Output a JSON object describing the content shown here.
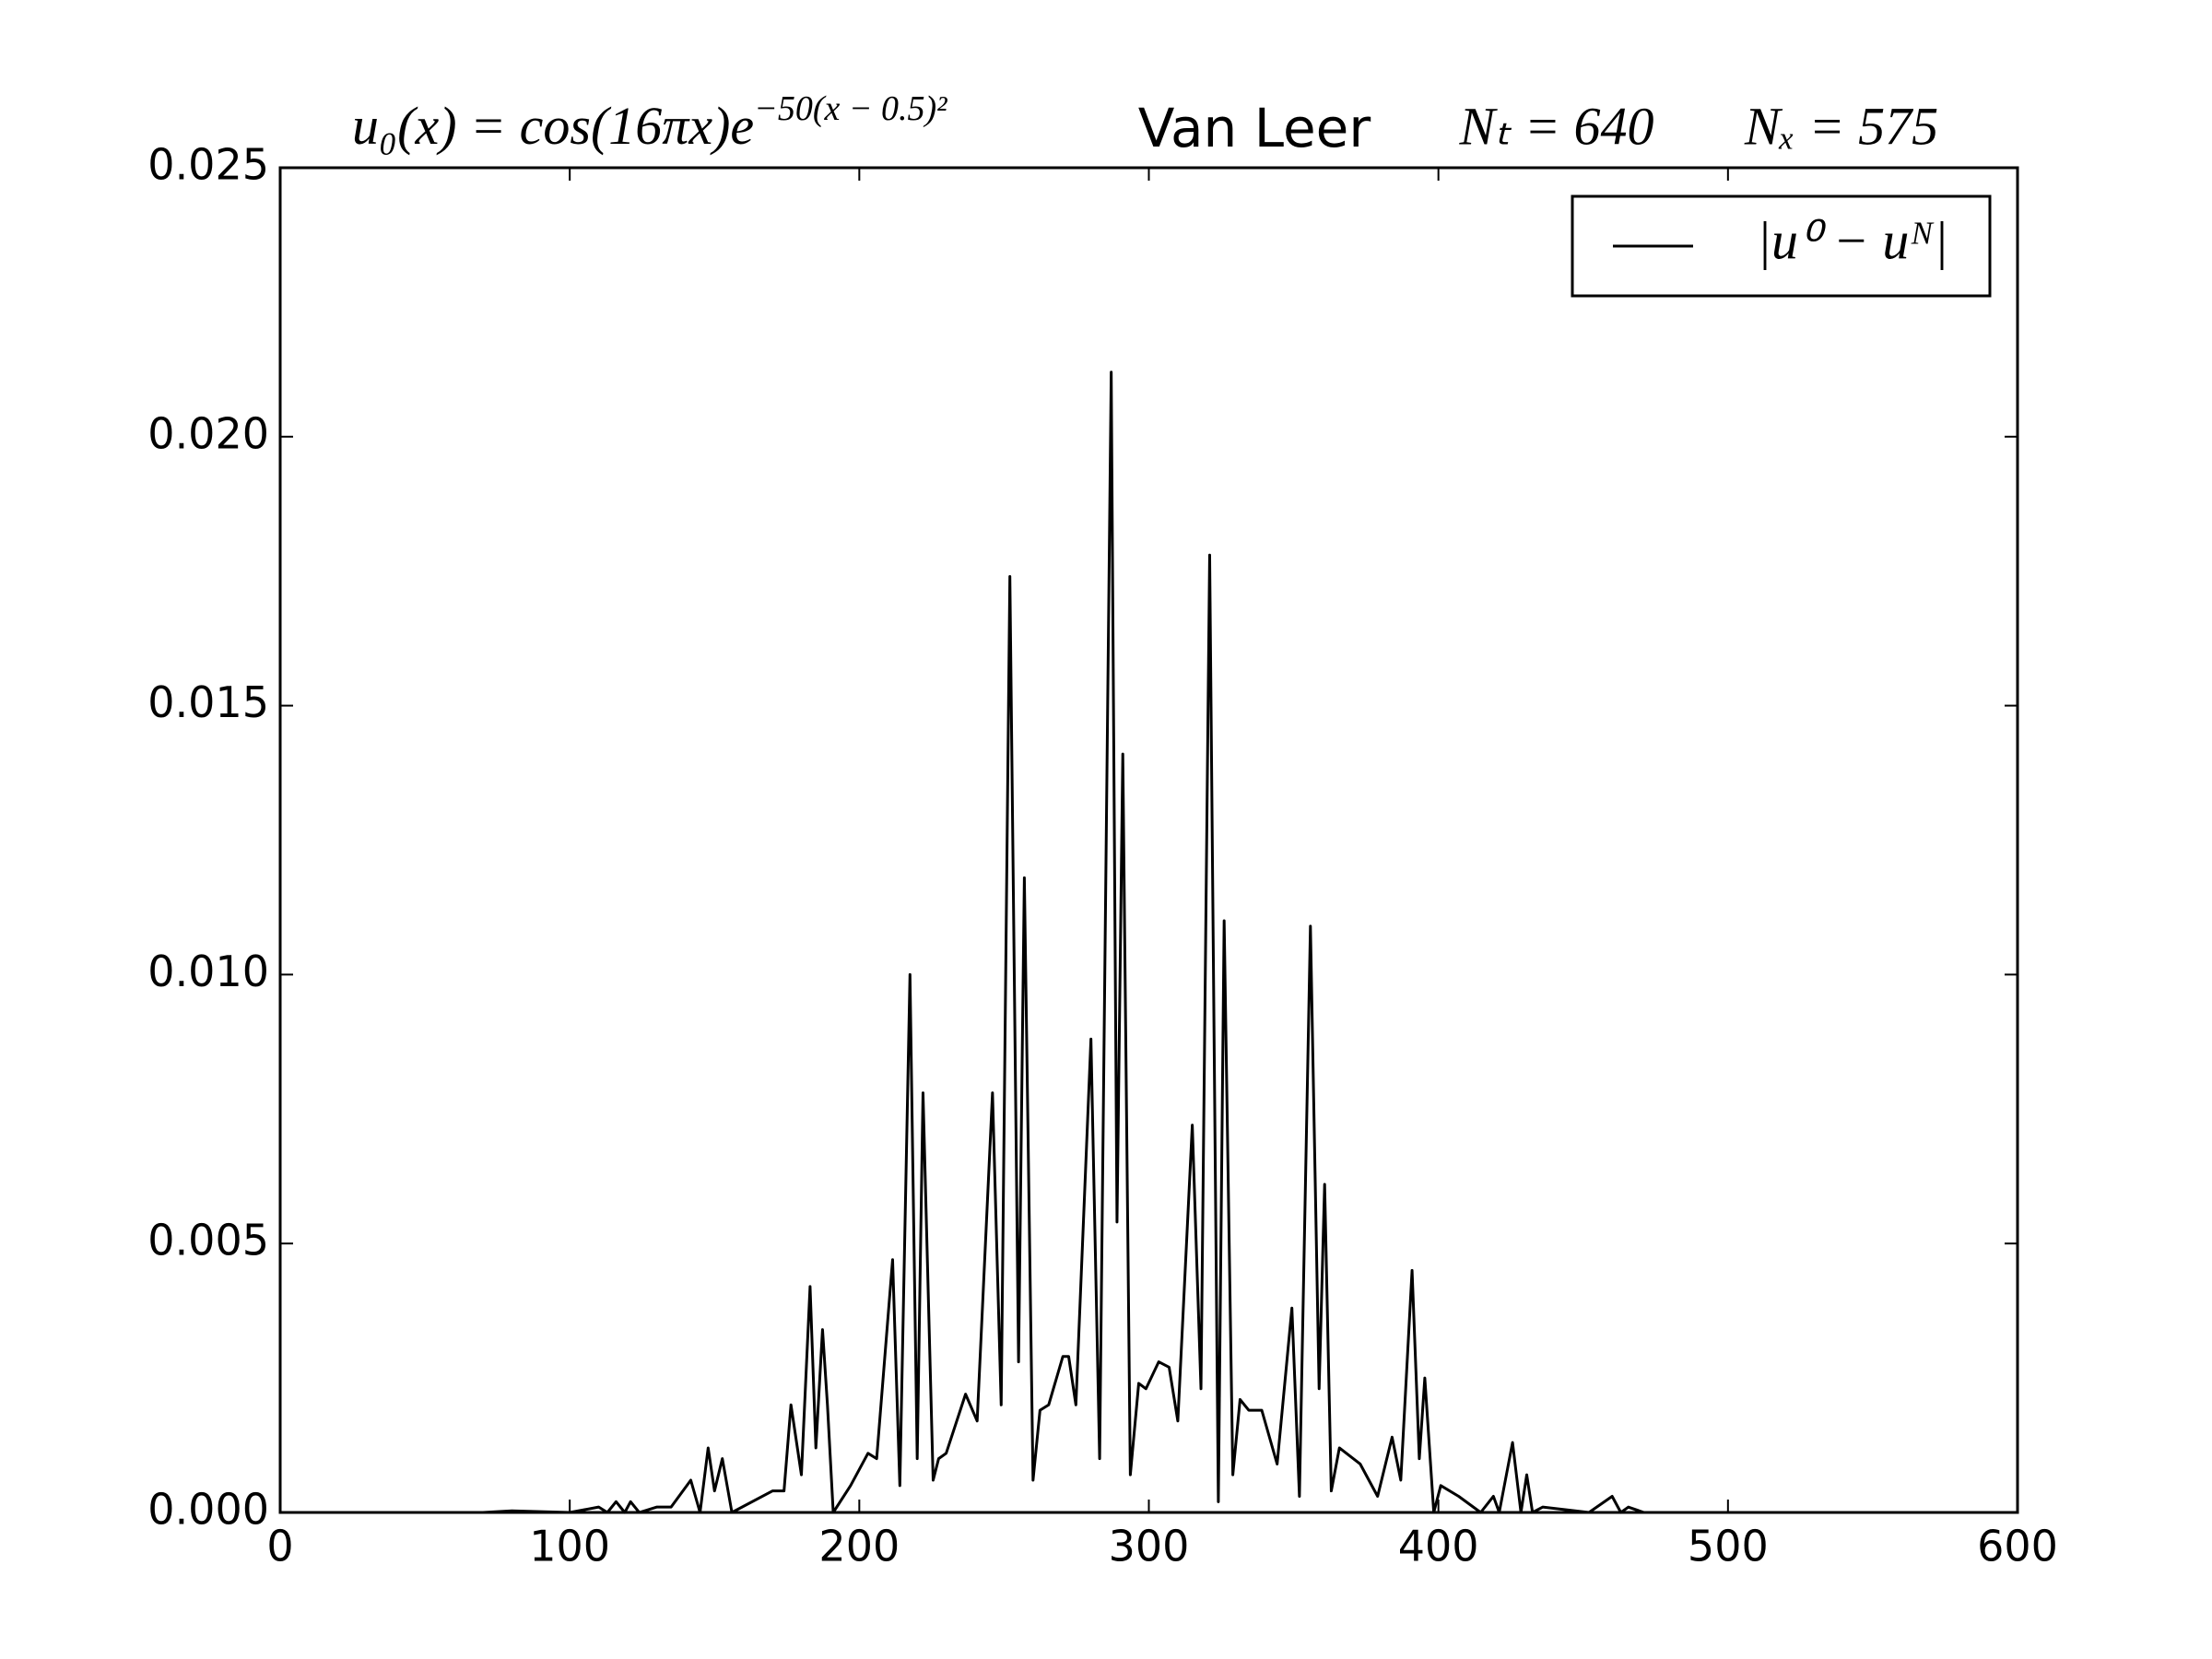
{
  "chart_data": {
    "type": "line",
    "title": {
      "formula": "u₀(x) = cos(16πx)e",
      "formula_exponent": "−50(x − 0.5)²",
      "method": "Van Leer",
      "time_steps": "Nₜ = 640",
      "space_steps": "Nₓ = 575"
    },
    "x": [
      0,
      70,
      80,
      100,
      110,
      113,
      116,
      119,
      121,
      124,
      130,
      135,
      141.8,
      145,
      147.8,
      150,
      152.7,
      156,
      170,
      174,
      176.4,
      180,
      183,
      185,
      187.3,
      189,
      191,
      197,
      203,
      206,
      211.5,
      214,
      217.5,
      220,
      222,
      225.5,
      227.4,
      230,
      236.7,
      240.7,
      246,
      249,
      252,
      255,
      257,
      260,
      262.4,
      265.4,
      270.3,
      272.3,
      274.8,
      280,
      283,
      287,
      289,
      291,
      293.6,
      296.5,
      299,
      303.4,
      307,
      310,
      315,
      318,
      321,
      324,
      326,
      329,
      331.5,
      334.5,
      339,
      344.3,
      349.4,
      352,
      355.8,
      358.8,
      360.7,
      363,
      365.8,
      373,
      379,
      384,
      387,
      390.9,
      393.4,
      395.3,
      398.4,
      400.8,
      407,
      414.6,
      419,
      421,
      425.6,
      428.5,
      430.5,
      432.5,
      436,
      452,
      460,
      463,
      465.6,
      471,
      575
    ],
    "series": [
      {
        "name": "|u⁰ − uᴺ|",
        "color": "#000000",
        "values": [
          0,
          0,
          3e-05,
          0,
          0.0001,
          0,
          0.0002,
          0,
          0.0002,
          0,
          0.0001,
          0.0001,
          0.0006,
          0,
          0.0012,
          0.0004,
          0.001,
          0,
          0.0004,
          0.0004,
          0.002,
          0.0007,
          0.0042,
          0.0012,
          0.0034,
          0.002,
          0,
          0.0005,
          0.0011,
          0.001,
          0.0047,
          0.0005,
          0.01,
          0.001,
          0.0078,
          0.0006,
          0.001,
          0.0011,
          0.0022,
          0.0017,
          0.0078,
          0.002,
          0.0174,
          0.0028,
          0.0118,
          0.0006,
          0.0019,
          0.002,
          0.0029,
          0.0029,
          0.002,
          0.0088,
          0.001,
          0.0212,
          0.0054,
          0.0141,
          0.0007,
          0.0024,
          0.0023,
          0.0028,
          0.0027,
          0.0017,
          0.0072,
          0.0023,
          0.0178,
          0.0002,
          0.011,
          0.0007,
          0.0021,
          0.0019,
          0.0019,
          0.0009,
          0.0038,
          0.0003,
          0.0109,
          0.0023,
          0.0061,
          0.0004,
          0.0012,
          0.0009,
          0.0003,
          0.0014,
          0.0006,
          0.0045,
          0.001,
          0.0025,
          0,
          0.0005,
          0.0003,
          0,
          0.0003,
          0,
          0.0013,
          0,
          0.0007,
          0,
          0.0001,
          0,
          0.0003,
          0,
          0.0001,
          0,
          0
        ]
      }
    ],
    "xlim": [
      0,
      600
    ],
    "xticks": [
      0,
      100,
      200,
      300,
      400,
      500,
      600
    ],
    "ylim": [
      0,
      0.025
    ],
    "yticks": [
      {
        "value": 0,
        "label": "0.000"
      },
      {
        "value": 0.005,
        "label": "0.005"
      },
      {
        "value": 0.01,
        "label": "0.010"
      },
      {
        "value": 0.015,
        "label": "0.015"
      },
      {
        "value": 0.02,
        "label": "0.020"
      },
      {
        "value": 0.025,
        "label": "0.025"
      }
    ],
    "legend": "upper right",
    "grid": false
  }
}
